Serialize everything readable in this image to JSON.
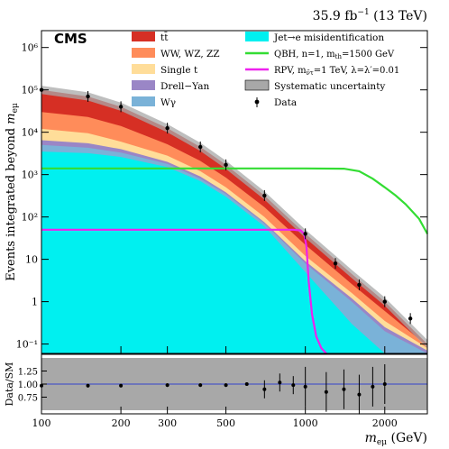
{
  "header": {
    "lumi_label": "35.9 fb",
    "lumi_sup": "−1",
    "lumi_energy": " (13 TeV)",
    "experiment": "CMS"
  },
  "chart_data": [
    {
      "type": "area",
      "panel": "main",
      "ylabel_main": "Events integrated beyond ",
      "ylabel_var": "m",
      "ylabel_sub": "eμ",
      "xlim": [
        100,
        2900
      ],
      "ylim": [
        0.06,
        2500000
      ],
      "log_y": true,
      "log_x": true,
      "x_ticks": [
        100,
        200,
        300,
        500,
        1000,
        2000
      ],
      "x_tick_labels": [
        "100",
        "200",
        "300",
        "500",
        "1000",
        "2000"
      ],
      "y_ticks": [
        0.1,
        1,
        10,
        100,
        1000,
        10000,
        100000,
        1000000
      ],
      "y_tick_labels": [
        "10⁻¹",
        "1",
        "10",
        "10²",
        "10³",
        "10⁴",
        "10⁵",
        "10⁶"
      ],
      "x": [
        100,
        150,
        200,
        300,
        400,
        500,
        700,
        1000,
        1500,
        2000,
        2900
      ],
      "series": [
        {
          "name": "Jet→e misidentification",
          "color": "#00f0f0",
          "values": [
            3500,
            3200,
            2600,
            1500,
            700,
            300,
            60,
            5,
            0.3,
            0.06,
            0.06
          ]
        },
        {
          "name": "Wγ",
          "color": "#7ab2d8",
          "values": [
            5000,
            4300,
            3300,
            1800,
            800,
            350,
            70,
            8,
            1,
            0.2,
            0.06
          ]
        },
        {
          "name": "Drell−Yan",
          "color": "#9a86c6",
          "values": [
            6500,
            5500,
            4000,
            2000,
            900,
            380,
            75,
            9,
            1.2,
            0.25,
            0.07
          ]
        },
        {
          "name": "Single t",
          "color": "#ffdd99",
          "values": [
            12000,
            9500,
            6000,
            2800,
            1200,
            500,
            100,
            12,
            1.6,
            0.35,
            0.08
          ]
        },
        {
          "name": "WW, WZ, ZZ",
          "color": "#ff8c5a",
          "values": [
            30000,
            23000,
            14000,
            5200,
            2100,
            850,
            170,
            22,
            2.6,
            0.6,
            0.09
          ]
        },
        {
          "name": "tt̄",
          "color": "#d62f24",
          "values": [
            100000,
            70000,
            40000,
            12500,
            4500,
            1700,
            320,
            40,
            4.5,
            1,
            0.1
          ]
        }
      ],
      "data": {
        "name": "Data",
        "x": [
          100,
          150,
          200,
          300,
          400,
          500,
          700,
          1000,
          1300,
          1600,
          2000,
          2500
        ],
        "y": [
          100000,
          70000,
          40000,
          12500,
          4500,
          1700,
          320,
          40,
          8,
          2.5,
          1,
          0.4
        ]
      },
      "systematic": {
        "name": "Systematic uncertainty",
        "color": "#a8a8a8"
      },
      "signals": [
        {
          "name": "QBH, n=1, m",
          "sub": "th",
          "suffix": "=1500 GeV",
          "color": "#33dd33",
          "x": [
            100,
            1000,
            1400,
            1600,
            1800,
            2000,
            2200,
            2400,
            2700,
            2900
          ],
          "y": [
            1400,
            1400,
            1380,
            1200,
            800,
            500,
            320,
            200,
            90,
            40
          ]
        },
        {
          "name": "RPV, m",
          "sub": "ν̃τ",
          "suffix": "=1 TeV, λ=λ′=0.01",
          "color": "#ee22ee",
          "x": [
            100,
            900,
            960,
            990,
            1010,
            1030,
            1060,
            1100,
            1150,
            1200
          ],
          "y": [
            50,
            50,
            48,
            40,
            20,
            3,
            0.5,
            0.15,
            0.08,
            0.06
          ]
        }
      ],
      "legend_placement": "top"
    },
    {
      "type": "scatter",
      "panel": "ratio",
      "ylabel": "Data/SM",
      "ylim": [
        0.5,
        1.5
      ],
      "y_ticks": [
        0.75,
        1.0,
        1.25
      ],
      "y_tick_labels": [
        "0.75",
        "1.00",
        "1.25"
      ],
      "xlabel_var": "m",
      "xlabel_sub": "eμ",
      "xlabel_unit": " (GeV)",
      "x": [
        100,
        150,
        200,
        300,
        400,
        500,
        600,
        700,
        800,
        900,
        1000,
        1200,
        1400,
        1600,
        1800,
        2000
      ],
      "values": [
        0.97,
        0.97,
        0.97,
        0.98,
        0.98,
        0.98,
        1.0,
        0.9,
        1.03,
        0.98,
        0.95,
        0.85,
        0.9,
        0.8,
        0.95,
        1.0
      ]
    }
  ]
}
